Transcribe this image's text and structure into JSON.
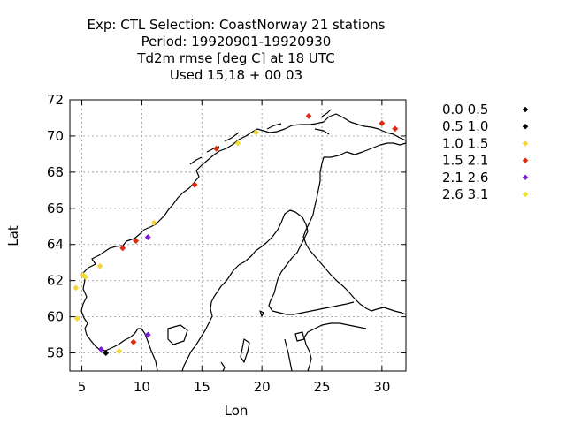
{
  "title_lines": [
    "Exp: CTL   Selection: CoastNorway     21 stations",
    "Period: 19920901-19920930",
    "Td2m rmse [deg C] at  18 UTC",
    "Used  15,18 + 00 03"
  ],
  "chart_data": {
    "type": "scatter",
    "xlabel": "Lon",
    "ylabel": "Lat",
    "xlim": [
      4,
      32
    ],
    "ylim": [
      57,
      72
    ],
    "xticks": [
      5,
      10,
      15,
      20,
      25,
      30
    ],
    "yticks": [
      58,
      60,
      62,
      64,
      66,
      68,
      70,
      72
    ],
    "grid": true,
    "legend_position": "right",
    "classes": [
      {
        "label": "0.0 0.5",
        "color": "#000000"
      },
      {
        "label": "0.5 1.0",
        "color": "#000000"
      },
      {
        "label": "1.0 1.5",
        "color": "#f5d63a"
      },
      {
        "label": "1.5 2.1",
        "color": "#dd2a12"
      },
      {
        "label": "2.1 2.6",
        "color": "#7a1fd6"
      },
      {
        "label": "2.6 3.1",
        "color": "#f0e030"
      }
    ],
    "points": [
      {
        "lon": 7.0,
        "lat": 58.0,
        "class": 1
      },
      {
        "lon": 8.1,
        "lat": 58.1,
        "class": 2
      },
      {
        "lon": 4.6,
        "lat": 59.9,
        "class": 2
      },
      {
        "lon": 4.5,
        "lat": 61.6,
        "class": 2
      },
      {
        "lon": 5.1,
        "lat": 62.3,
        "class": 2
      },
      {
        "lon": 6.5,
        "lat": 62.8,
        "class": 2
      },
      {
        "lon": 11.0,
        "lat": 65.2,
        "class": 2
      },
      {
        "lon": 19.5,
        "lat": 70.2,
        "class": 2
      },
      {
        "lon": 9.3,
        "lat": 58.6,
        "class": 3
      },
      {
        "lon": 8.4,
        "lat": 63.8,
        "class": 3
      },
      {
        "lon": 9.5,
        "lat": 64.2,
        "class": 3
      },
      {
        "lon": 14.4,
        "lat": 67.3,
        "class": 3
      },
      {
        "lon": 16.2,
        "lat": 69.3,
        "class": 3
      },
      {
        "lon": 23.9,
        "lat": 71.1,
        "class": 3
      },
      {
        "lon": 30.0,
        "lat": 70.7,
        "class": 3
      },
      {
        "lon": 31.1,
        "lat": 70.4,
        "class": 3
      },
      {
        "lon": 6.6,
        "lat": 58.2,
        "class": 4
      },
      {
        "lon": 10.5,
        "lat": 59.0,
        "class": 4
      },
      {
        "lon": 10.5,
        "lat": 64.4,
        "class": 4
      },
      {
        "lon": 5.3,
        "lat": 62.2,
        "class": 5
      },
      {
        "lon": 18.0,
        "lat": 69.6,
        "class": 5
      }
    ]
  }
}
